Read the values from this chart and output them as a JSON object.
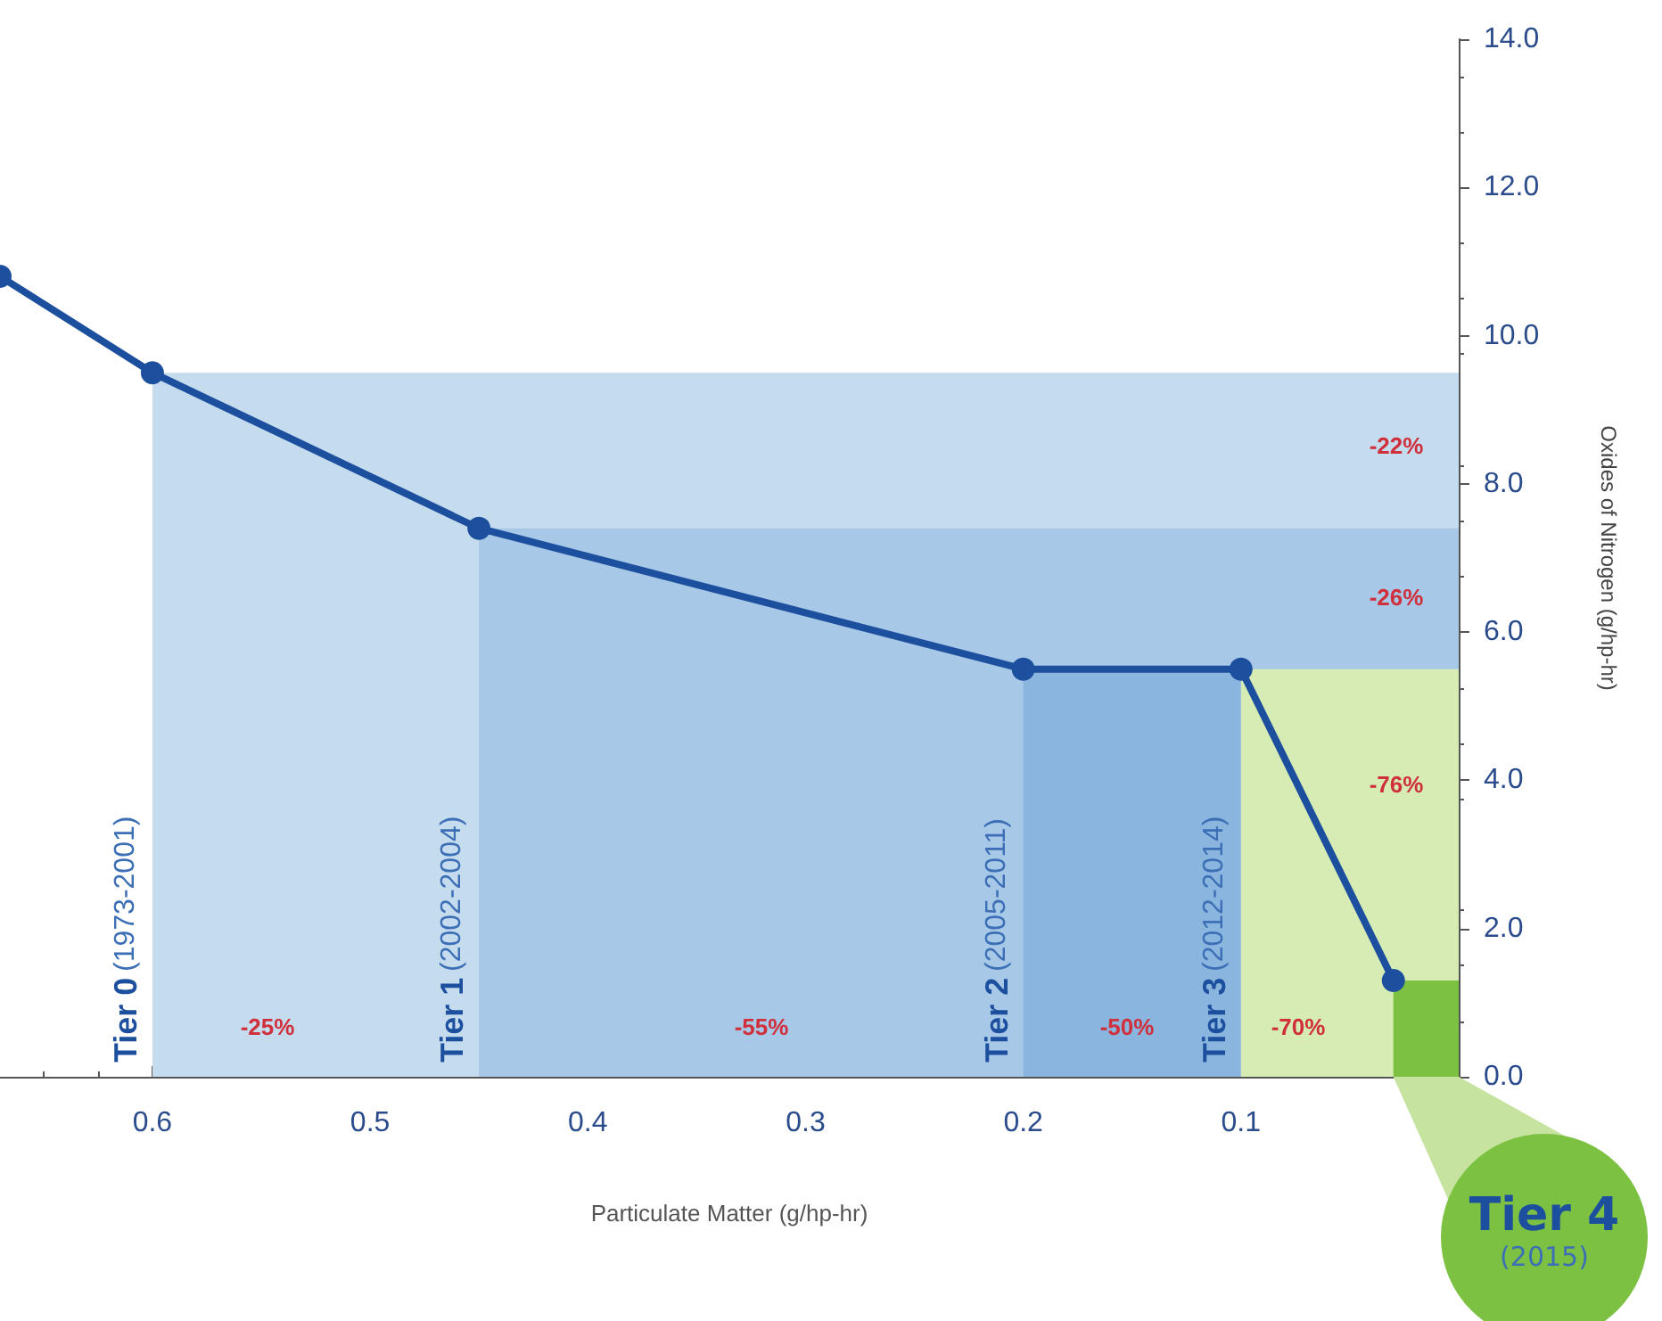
{
  "chart_data": {
    "type": "line",
    "xlabel": "Particulate Matter (g/hp-hr)",
    "ylabel": "Oxides of Nitrogen (g/hp-hr)",
    "xlim": [
      0.67,
      0
    ],
    "xticks": [
      0.6,
      0.5,
      0.4,
      0.3,
      0.2,
      0.1
    ],
    "ylim": [
      0,
      14
    ],
    "yticks": [
      {
        "value": 0,
        "label": "0.0"
      },
      {
        "value": 2,
        "label": "2.0"
      },
      {
        "value": 4,
        "label": "4.0"
      },
      {
        "value": 6,
        "label": "6.0"
      },
      {
        "value": 8,
        "label": "8.0"
      },
      {
        "value": 10,
        "label": "10.0"
      },
      {
        "value": 12,
        "label": "12.0"
      },
      {
        "value": 14,
        "label": "14.0"
      }
    ],
    "grid": false,
    "legend": false,
    "series": [
      {
        "type": "area",
        "name": "Tier 0 (1973-2001)",
        "color": "#c5dbee",
        "x": [
          0.6,
          0
        ],
        "values": [
          9.5,
          9.5
        ]
      },
      {
        "type": "area",
        "name": "Tier 1 (2002-2004)",
        "color": "#a8c8e7",
        "x": [
          0.45,
          0
        ],
        "values": [
          7.4,
          7.4
        ]
      },
      {
        "type": "area",
        "name": "Tier 2 (2005-2011)",
        "color": "#8ab5de",
        "x": [
          0.2,
          0.1
        ],
        "values": [
          5.5,
          5.5
        ]
      },
      {
        "type": "area",
        "name": "Tier 3 (2012-2014)",
        "color": "#d6ecb4",
        "x": [
          0.1,
          0
        ],
        "values": [
          5.5,
          5.5
        ]
      },
      {
        "type": "area",
        "name": "Tier 4 (2015)",
        "color": "#7dc143",
        "x": [
          0.03,
          0
        ],
        "values": [
          1.3,
          1.3
        ]
      },
      {
        "color": "#1c4f9e",
        "marker": "circle",
        "x": [
          0.67,
          0.6,
          0.45,
          0.2,
          0.1,
          0.03
        ],
        "values": [
          10.8,
          9.5,
          7.4,
          5.5,
          5.5,
          1.3
        ]
      }
    ],
    "annotations": [
      "-25%",
      "-55%",
      "-50%",
      "-70%",
      "-22%",
      "-26%",
      "-76%"
    ]
  }
}
